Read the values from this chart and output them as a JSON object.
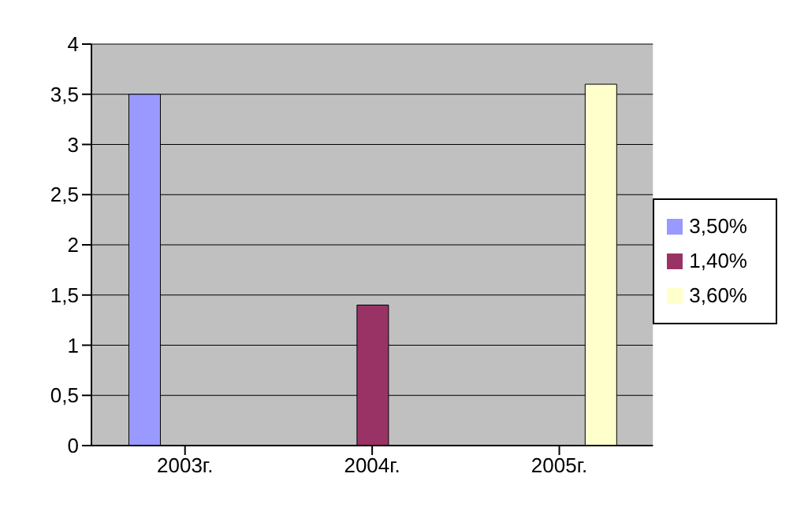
{
  "chart_data": {
    "type": "bar",
    "categories": [
      "2003г.",
      "2004г.",
      "2005г."
    ],
    "series": [
      {
        "name": "3,50%",
        "color": "#9999ff",
        "values": [
          3.5,
          null,
          null
        ]
      },
      {
        "name": "1,40%",
        "color": "#993366",
        "values": [
          null,
          1.4,
          null
        ]
      },
      {
        "name": "3,60%",
        "color": "#ffffcc",
        "values": [
          null,
          null,
          3.6
        ]
      }
    ],
    "ylim": [
      0,
      4
    ],
    "yticks": [
      0,
      {
        "value": 0.5,
        "label": "0,5"
      },
      1,
      {
        "value": 1.5,
        "label": "1,5"
      },
      2,
      {
        "value": 2.5,
        "label": "2,5"
      },
      3,
      {
        "value": 3.5,
        "label": "3,5"
      },
      4
    ],
    "grid": "y",
    "legend": "right"
  }
}
